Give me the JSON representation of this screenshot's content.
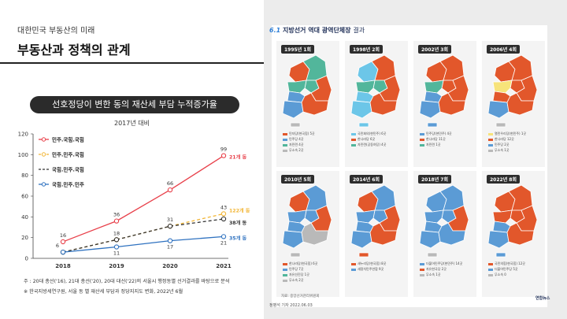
{
  "slide": {
    "kicker": "대한민국 부동산의 미래",
    "title": "부동산과 정책의 관계",
    "pill": "선호정당이 변한 동의 재산세 부담 누적증가율",
    "subtitle": "2017년 대비",
    "notes": [
      "주 : 20대 총선('16), 21대 총선('20), 20대 대선('22)의 서울시 행정동별 선거결과를 바탕으로 분석",
      "※ 한국지방세연구원, 서울 동 별 재산세 부담과 정당지지도 변화, 2022년 6월"
    ]
  },
  "chart_data": {
    "type": "line",
    "x": [
      "2018",
      "2019",
      "2020",
      "2021"
    ],
    "y_ticks": [
      "0",
      "20",
      "40",
      "60",
      "80",
      "100",
      "120"
    ],
    "ylim": [
      0,
      120
    ],
    "series": [
      {
        "name": "민주.국힘.국힘",
        "values": [
          16,
          36,
          66,
          99
        ],
        "color": "#e8404a",
        "dash": "",
        "end_label": "21개 동"
      },
      {
        "name": "민주.민주.국힘",
        "values": [
          6,
          18,
          31,
          43
        ],
        "color": "#f2b534",
        "dash": "4,3",
        "end_label": "122개 동"
      },
      {
        "name": "국힘.민주.국힘",
        "values": [
          6,
          18,
          31,
          38
        ],
        "color": "#333333",
        "dash": "4,3",
        "end_label": "38개 동"
      },
      {
        "name": "국힘.민주.민주",
        "values": [
          6,
          11,
          17,
          21
        ],
        "color": "#2f72c0",
        "dash": "",
        "end_label": "35개 동"
      }
    ],
    "data_labels": [
      {
        "series": 0,
        "values": [
          "16",
          "36",
          "66",
          "99"
        ]
      },
      {
        "series": 1,
        "values": [
          "6",
          "18",
          "31",
          "43"
        ]
      },
      {
        "series": 3,
        "values": [
          "",
          "11",
          "17",
          "21"
        ]
      }
    ]
  },
  "panel": {
    "title_num": "6.1",
    "title_main": "지방선거",
    "title_rest": "역대 광역단체장",
    "title_light": "결과",
    "source": "자료: 중앙선거관리위원회",
    "source2": "정병석 기자 2022.06.03",
    "logo_text": "연합뉴스",
    "colors": {
      "red": "#e2572b",
      "blue": "#5b9bd5",
      "sky": "#6cc6e8",
      "teal": "#52b69b",
      "yellow": "#f7e37a",
      "gray": "#b9b9b9"
    },
    "maps": [
      {
        "tag": "1995년 1회",
        "legend": [
          {
            "c": "red",
            "t": "민자당(현국힘) 5곳"
          },
          {
            "c": "blue",
            "t": "민주당 4곳"
          },
          {
            "c": "teal",
            "t": "자민련 4곳"
          },
          {
            "c": "gray",
            "t": "무소속 2곳"
          }
        ]
      },
      {
        "tag": "1998년 2회",
        "legend": [
          {
            "c": "sky",
            "t": "국민회의(현민주) 6곳"
          },
          {
            "c": "red",
            "t": "한나라당 6곳"
          },
          {
            "c": "teal",
            "t": "자민련(공동여당) 4곳"
          }
        ]
      },
      {
        "tag": "2002년 3회",
        "legend": [
          {
            "c": "blue",
            "t": "민주당(현민주) 4곳"
          },
          {
            "c": "red",
            "t": "한나라당 11곳"
          },
          {
            "c": "teal",
            "t": "자민련 1곳"
          }
        ]
      },
      {
        "tag": "2006년 4회",
        "legend": [
          {
            "c": "yellow",
            "t": "열린우리당(현민주) 1곳"
          },
          {
            "c": "red",
            "t": "한나라당 12곳"
          },
          {
            "c": "blue",
            "t": "민주당 2곳"
          },
          {
            "c": "gray",
            "t": "무소속 1곳"
          }
        ]
      },
      {
        "tag": "2010년 5회",
        "legend": [
          {
            "c": "red",
            "t": "한나라당(현국힘) 6곳"
          },
          {
            "c": "blue",
            "t": "민주당 7곳"
          },
          {
            "c": "teal",
            "t": "자유선진당 1곳"
          },
          {
            "c": "gray",
            "t": "무소속 2곳"
          }
        ]
      },
      {
        "tag": "2014년 6회",
        "legend": [
          {
            "c": "red",
            "t": "새누리당(현국힘) 8곳"
          },
          {
            "c": "blue",
            "t": "새정치민주연합 9곳"
          }
        ]
      },
      {
        "tag": "2018년 7회",
        "legend": [
          {
            "c": "blue",
            "t": "더불어민주당(현민주) 14곳"
          },
          {
            "c": "red",
            "t": "자유한국당 2곳"
          },
          {
            "c": "gray",
            "t": "무소속 1곳"
          }
        ]
      },
      {
        "tag": "2022년 8회",
        "legend": [
          {
            "c": "red",
            "t": "국민의힘(현국힘) 12곳"
          },
          {
            "c": "blue",
            "t": "더불어민주당 5곳"
          },
          {
            "c": "gray",
            "t": "무소속 0"
          }
        ]
      }
    ]
  }
}
